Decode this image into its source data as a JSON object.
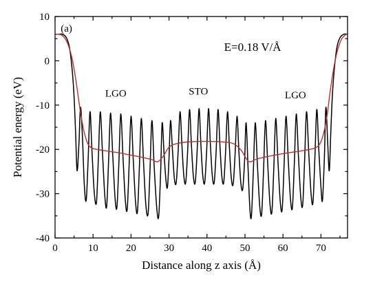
{
  "chart_data": {
    "type": "line",
    "title": "",
    "xlabel": "Distance along z axis (Å)",
    "ylabel": "Potential energy (eV)",
    "xlim": [
      0,
      77
    ],
    "ylim": [
      -40,
      10
    ],
    "xticks": [
      0,
      10,
      20,
      30,
      40,
      50,
      60,
      70
    ],
    "yticks": [
      10,
      0,
      -10,
      -20,
      -30,
      -40
    ],
    "grid": false,
    "legend": "none",
    "annotations": [
      {
        "text": "(a)",
        "x": 1.5,
        "y": 6.6
      },
      {
        "text": "E=0.18 V/Å",
        "x": 44.5,
        "y": 2.2
      },
      {
        "text": "LGO",
        "x": 13.2,
        "y": -8.1
      },
      {
        "text": "STO",
        "x": 35.2,
        "y": -7.6
      },
      {
        "text": "LGO",
        "x": 60.5,
        "y": -8.5
      }
    ],
    "series": [
      {
        "color": "#000000",
        "note": "oscillating planar-averaged potential",
        "points": [
          [
            0,
            6.0
          ],
          [
            1.0,
            6.0
          ],
          [
            2.0,
            6.0
          ],
          [
            3.0,
            5.2
          ],
          [
            3.8,
            3.0
          ],
          [
            4.5,
            -2.0
          ],
          [
            5.0,
            -8.0
          ],
          [
            5.4,
            -16.0
          ],
          [
            5.8,
            -24.8
          ],
          [
            6.3,
            -18.5
          ],
          [
            6.7,
            -10.5
          ],
          [
            7.2,
            -17.0
          ],
          [
            7.7,
            -28.0
          ],
          [
            8.2,
            -31.5
          ],
          [
            8.7,
            -22.5
          ],
          [
            9.2,
            -11.5
          ],
          [
            9.7,
            -20.0
          ],
          [
            10.3,
            -29.5
          ],
          [
            10.9,
            -32.0
          ],
          [
            11.4,
            -22.0
          ],
          [
            11.9,
            -11.5
          ],
          [
            12.5,
            -21.0
          ],
          [
            13.1,
            -30.5
          ],
          [
            13.6,
            -32.8
          ],
          [
            14.1,
            -22.5
          ],
          [
            14.6,
            -11.8
          ],
          [
            15.2,
            -21.5
          ],
          [
            15.8,
            -31.0
          ],
          [
            16.3,
            -33.0
          ],
          [
            16.8,
            -23.0
          ],
          [
            17.3,
            -12.0
          ],
          [
            17.9,
            -22.0
          ],
          [
            18.5,
            -31.5
          ],
          [
            19.0,
            -33.5
          ],
          [
            19.5,
            -23.5
          ],
          [
            20.0,
            -12.5
          ],
          [
            20.6,
            -22.5
          ],
          [
            21.2,
            -32.0
          ],
          [
            21.7,
            -34.0
          ],
          [
            22.2,
            -24.0
          ],
          [
            22.7,
            -13.0
          ],
          [
            23.3,
            -23.0
          ],
          [
            23.9,
            -32.5
          ],
          [
            24.5,
            -34.5
          ],
          [
            25.0,
            -24.5
          ],
          [
            25.5,
            -13.5
          ],
          [
            26.1,
            -24.0
          ],
          [
            26.8,
            -33.5
          ],
          [
            27.3,
            -35.0
          ],
          [
            27.8,
            -25.0
          ],
          [
            28.2,
            -14.0
          ],
          [
            28.7,
            -21.0
          ],
          [
            29.2,
            -27.0
          ],
          [
            29.6,
            -28.5
          ],
          [
            30.0,
            -22.0
          ],
          [
            30.4,
            -13.5
          ],
          [
            30.9,
            -20.0
          ],
          [
            31.4,
            -26.5
          ],
          [
            31.9,
            -27.5
          ],
          [
            32.4,
            -20.5
          ],
          [
            32.9,
            -11.5
          ],
          [
            33.4,
            -19.0
          ],
          [
            33.9,
            -26.0
          ],
          [
            34.4,
            -27.5
          ],
          [
            34.9,
            -20.5
          ],
          [
            35.4,
            -11.0
          ],
          [
            35.9,
            -19.0
          ],
          [
            36.4,
            -26.0
          ],
          [
            36.9,
            -27.5
          ],
          [
            37.4,
            -20.5
          ],
          [
            37.9,
            -10.8
          ],
          [
            38.4,
            -19.0
          ],
          [
            38.9,
            -26.0
          ],
          [
            39.4,
            -27.5
          ],
          [
            39.9,
            -20.5
          ],
          [
            40.4,
            -10.8
          ],
          [
            40.9,
            -19.0
          ],
          [
            41.4,
            -26.0
          ],
          [
            41.9,
            -27.5
          ],
          [
            42.4,
            -20.5
          ],
          [
            42.9,
            -11.0
          ],
          [
            43.4,
            -19.0
          ],
          [
            43.9,
            -26.0
          ],
          [
            44.4,
            -27.5
          ],
          [
            44.9,
            -20.5
          ],
          [
            45.4,
            -11.5
          ],
          [
            45.9,
            -19.5
          ],
          [
            46.4,
            -26.5
          ],
          [
            46.9,
            -27.8
          ],
          [
            47.4,
            -21.0
          ],
          [
            47.9,
            -12.5
          ],
          [
            48.4,
            -20.5
          ],
          [
            48.9,
            -27.5
          ],
          [
            49.4,
            -29.0
          ],
          [
            49.9,
            -22.5
          ],
          [
            50.3,
            -14.0
          ],
          [
            50.8,
            -24.0
          ],
          [
            51.3,
            -33.5
          ],
          [
            51.7,
            -35.0
          ],
          [
            52.2,
            -25.0
          ],
          [
            52.7,
            -14.0
          ],
          [
            53.3,
            -24.0
          ],
          [
            53.9,
            -33.0
          ],
          [
            54.4,
            -34.5
          ],
          [
            54.9,
            -24.5
          ],
          [
            55.4,
            -13.5
          ],
          [
            56.0,
            -23.5
          ],
          [
            56.6,
            -32.5
          ],
          [
            57.1,
            -34.0
          ],
          [
            57.6,
            -24.0
          ],
          [
            58.1,
            -13.0
          ],
          [
            58.7,
            -23.0
          ],
          [
            59.3,
            -32.0
          ],
          [
            59.8,
            -33.5
          ],
          [
            60.3,
            -23.5
          ],
          [
            60.8,
            -12.5
          ],
          [
            61.4,
            -22.5
          ],
          [
            62.0,
            -31.5
          ],
          [
            62.5,
            -33.0
          ],
          [
            63.0,
            -23.0
          ],
          [
            63.5,
            -12.0
          ],
          [
            64.1,
            -22.0
          ],
          [
            64.7,
            -31.0
          ],
          [
            65.2,
            -32.5
          ],
          [
            65.7,
            -22.5
          ],
          [
            66.2,
            -11.5
          ],
          [
            66.8,
            -21.0
          ],
          [
            67.4,
            -30.0
          ],
          [
            67.9,
            -32.0
          ],
          [
            68.4,
            -22.0
          ],
          [
            68.9,
            -11.0
          ],
          [
            69.4,
            -19.5
          ],
          [
            70.0,
            -28.5
          ],
          [
            70.4,
            -31.5
          ],
          [
            70.9,
            -22.0
          ],
          [
            71.3,
            -10.5
          ],
          [
            71.8,
            -19.0
          ],
          [
            72.2,
            -24.8
          ],
          [
            72.6,
            -16.0
          ],
          [
            73.0,
            -8.0
          ],
          [
            73.5,
            -2.0
          ],
          [
            74.2,
            3.0
          ],
          [
            75.0,
            5.2
          ],
          [
            76.0,
            6.0
          ],
          [
            77.0,
            6.0
          ]
        ]
      },
      {
        "color": "#b5322b",
        "note": "macroscopic averaged potential",
        "points": [
          [
            0,
            6.0
          ],
          [
            0.5,
            6.0
          ],
          [
            1.5,
            5.9
          ],
          [
            2.5,
            5.2
          ],
          [
            3.5,
            3.5
          ],
          [
            4.5,
            0.5
          ],
          [
            5.5,
            -4.5
          ],
          [
            6.5,
            -10.5
          ],
          [
            7.5,
            -15.5
          ],
          [
            8.5,
            -18.5
          ],
          [
            9.5,
            -19.6
          ],
          [
            11.0,
            -20.0
          ],
          [
            14.0,
            -20.4
          ],
          [
            17.0,
            -20.8
          ],
          [
            20.0,
            -21.3
          ],
          [
            23.0,
            -21.8
          ],
          [
            25.5,
            -22.3
          ],
          [
            27.0,
            -22.8
          ],
          [
            28.5,
            -21.5
          ],
          [
            30.0,
            -19.5
          ],
          [
            32.0,
            -18.7
          ],
          [
            35.0,
            -18.3
          ],
          [
            38.0,
            -18.2
          ],
          [
            41.0,
            -18.2
          ],
          [
            44.0,
            -18.3
          ],
          [
            47.0,
            -18.7
          ],
          [
            49.0,
            -20.2
          ],
          [
            50.5,
            -22.3
          ],
          [
            51.5,
            -22.8
          ],
          [
            53.0,
            -22.2
          ],
          [
            56.0,
            -21.6
          ],
          [
            59.0,
            -21.1
          ],
          [
            62.0,
            -20.7
          ],
          [
            65.0,
            -20.3
          ],
          [
            68.0,
            -19.8
          ],
          [
            69.5,
            -19.0
          ],
          [
            70.5,
            -17.0
          ],
          [
            71.5,
            -13.0
          ],
          [
            72.5,
            -6.5
          ],
          [
            73.5,
            -1.0
          ],
          [
            74.5,
            2.8
          ],
          [
            75.5,
            5.0
          ],
          [
            76.5,
            5.9
          ],
          [
            77.0,
            6.0
          ]
        ]
      }
    ]
  }
}
